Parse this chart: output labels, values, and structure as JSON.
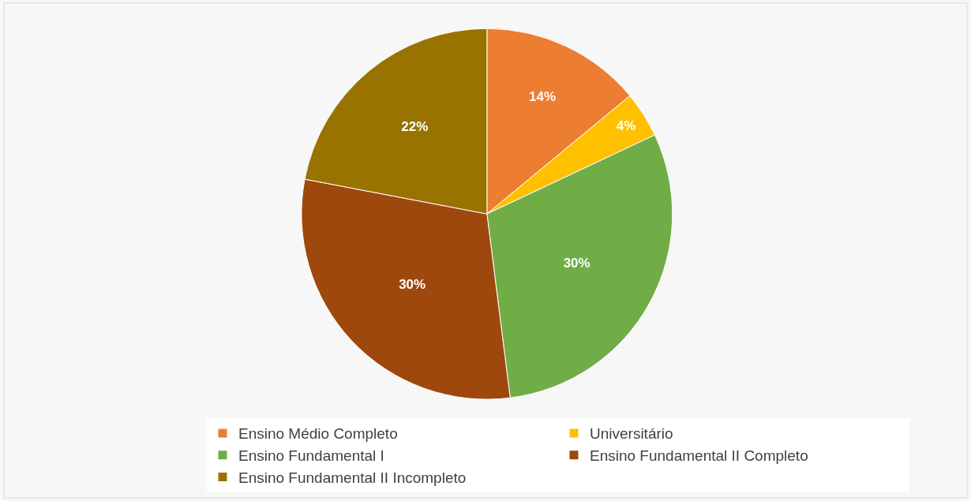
{
  "chart_data": {
    "type": "pie",
    "categories": [
      "Ensino Médio Completo",
      "Universitário",
      "Ensino Fundamental I",
      "Ensino Fundamental II Completo",
      "Ensino Fundamental II Incompleto"
    ],
    "values": [
      14,
      4,
      30,
      30,
      22
    ],
    "colors": [
      "#ed7d31",
      "#ffc000",
      "#70ad47",
      "#9e480e",
      "#997300"
    ],
    "value_labels": [
      "14%",
      "4%",
      "30%",
      "30%",
      "22%"
    ],
    "legend": "bottom"
  }
}
